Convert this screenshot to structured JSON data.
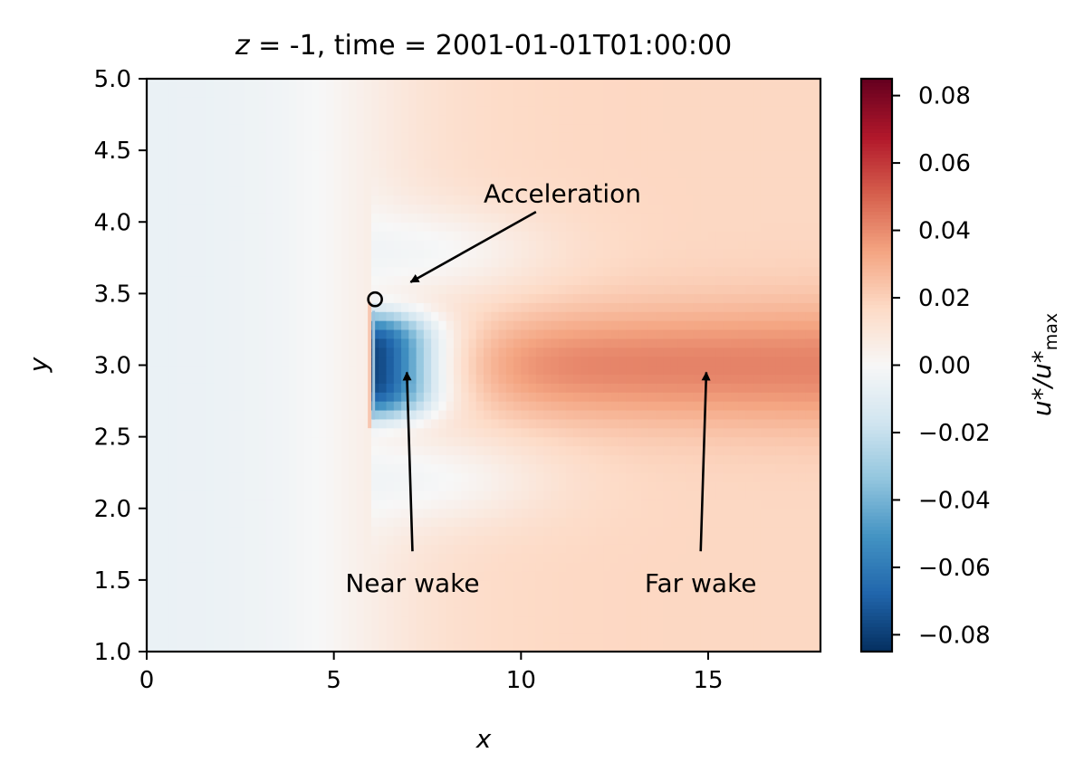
{
  "chart_data": {
    "type": "heatmap",
    "title_prefix": "z",
    "title_rest": " = -1, time = 2001-01-01T01:00:00",
    "xlabel": "x",
    "ylabel": "y",
    "xlim": [
      0,
      18
    ],
    "ylim": [
      1.0,
      5.0
    ],
    "x_ticks": [
      0,
      5,
      10,
      15
    ],
    "x_tick_labels": [
      "0",
      "5",
      "10",
      "15"
    ],
    "y_ticks": [
      1.0,
      1.5,
      2.0,
      2.5,
      3.0,
      3.5,
      4.0,
      4.5,
      5.0
    ],
    "y_tick_labels": [
      "1.0",
      "1.5",
      "2.0",
      "2.5",
      "3.0",
      "3.5",
      "4.0",
      "4.5",
      "5.0"
    ],
    "colormap": "RdBu_r",
    "colorbar": {
      "label": "u*/u*max",
      "label_main": "u*/u*",
      "label_sub": "max",
      "vmin": -0.085,
      "vmax": 0.085,
      "ticks": [
        -0.08,
        -0.06,
        -0.04,
        -0.02,
        0.0,
        0.02,
        0.04,
        0.06,
        0.08
      ],
      "tick_labels": [
        "−0.08",
        "−0.06",
        "−0.04",
        "−0.02",
        "0.00",
        "0.02",
        "0.04",
        "0.06",
        "0.08"
      ]
    },
    "field": {
      "inflow_value": -0.006,
      "outflow_value": 0.018,
      "obstacle": {
        "x": 6.1,
        "y_min": 2.62,
        "y_max": 3.38
      },
      "near_wake_peak": -0.085,
      "far_wake_peak": 0.03,
      "far_wake_center": [
        15,
        3.0
      ]
    },
    "annotations": [
      {
        "label": "Acceleration",
        "x": 9.0,
        "y": 4.2,
        "arrow_to": [
          7.05,
          3.58
        ],
        "arrow_from": [
          10.4,
          4.07
        ]
      },
      {
        "label": "Near wake",
        "x": 7.1,
        "y": 1.48,
        "arrow_to": [
          6.95,
          2.95
        ],
        "arrow_from": [
          7.1,
          1.7
        ]
      },
      {
        "label": "Far wake",
        "x": 14.8,
        "y": 1.48,
        "arrow_to": [
          14.95,
          2.95
        ],
        "arrow_from": [
          14.8,
          1.7
        ]
      }
    ],
    "circle_marker": {
      "center": [
        6.1,
        3.46
      ],
      "radius": 0.14
    }
  }
}
